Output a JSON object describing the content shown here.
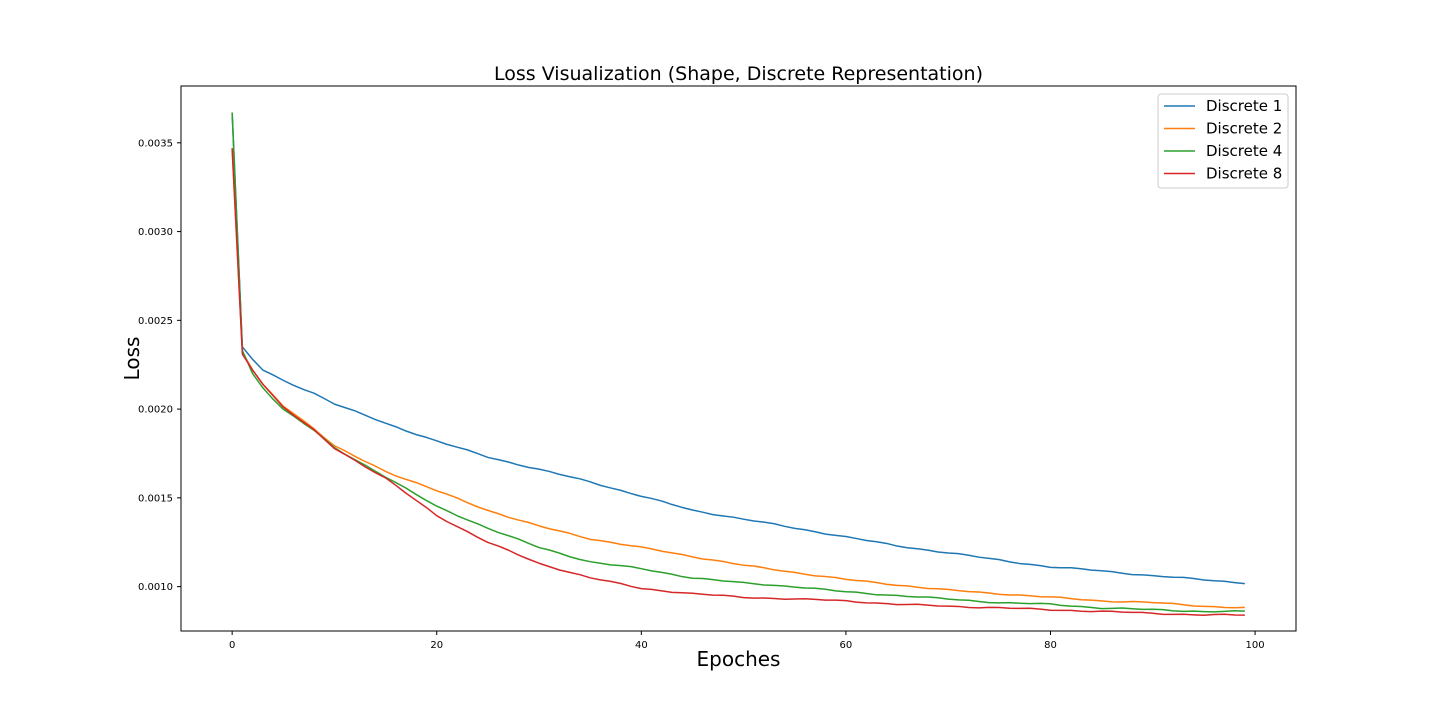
{
  "chart_data": {
    "type": "line",
    "title": "Loss Visualization (Shape, Discrete Representation)",
    "xlabel": "Epoches",
    "ylabel": "Loss",
    "xlim": [
      -5,
      104
    ],
    "ylim": [
      0.00075,
      0.00382
    ],
    "xticks": [
      0,
      20,
      40,
      60,
      80,
      100
    ],
    "yticks": [
      0.001,
      0.0015,
      0.002,
      0.0025,
      0.003,
      0.0035
    ],
    "ytick_labels": [
      "0.0010",
      "0.0015",
      "0.0020",
      "0.0025",
      "0.0030",
      "0.0035"
    ],
    "grid": false,
    "legend_position": "top-right",
    "x_start": 0,
    "x_end": 99,
    "series": [
      {
        "name": "Discrete 1",
        "color": "#1f77b4",
        "anchors": [
          [
            0,
            0.00367
          ],
          [
            1,
            0.00235
          ],
          [
            2,
            0.00228
          ],
          [
            3,
            0.00222
          ],
          [
            5,
            0.00216
          ],
          [
            8,
            0.00209
          ],
          [
            10,
            0.00203
          ],
          [
            15,
            0.00192
          ],
          [
            20,
            0.00182
          ],
          [
            25,
            0.00173
          ],
          [
            30,
            0.00166
          ],
          [
            35,
            0.00159
          ],
          [
            40,
            0.00151
          ],
          [
            45,
            0.00143
          ],
          [
            50,
            0.00138
          ],
          [
            55,
            0.00133
          ],
          [
            60,
            0.00128
          ],
          [
            65,
            0.00123
          ],
          [
            70,
            0.00119
          ],
          [
            75,
            0.00115
          ],
          [
            80,
            0.00111
          ],
          [
            85,
            0.00109
          ],
          [
            90,
            0.00106
          ],
          [
            95,
            0.00104
          ],
          [
            99,
            0.00102
          ]
        ]
      },
      {
        "name": "Discrete 2",
        "color": "#ff7f0e",
        "anchors": [
          [
            0,
            0.00346
          ],
          [
            1,
            0.00232
          ],
          [
            2,
            0.00222
          ],
          [
            3,
            0.00214
          ],
          [
            5,
            0.00202
          ],
          [
            8,
            0.00189
          ],
          [
            10,
            0.00179
          ],
          [
            15,
            0.00165
          ],
          [
            20,
            0.00154
          ],
          [
            25,
            0.00143
          ],
          [
            30,
            0.00134
          ],
          [
            35,
            0.00127
          ],
          [
            40,
            0.00122
          ],
          [
            45,
            0.00117
          ],
          [
            50,
            0.00112
          ],
          [
            55,
            0.00108
          ],
          [
            60,
            0.00104
          ],
          [
            65,
            0.00101
          ],
          [
            70,
            0.00098
          ],
          [
            75,
            0.00096
          ],
          [
            80,
            0.00094
          ],
          [
            85,
            0.00092
          ],
          [
            90,
            0.00091
          ],
          [
            95,
            0.00089
          ],
          [
            99,
            0.00088
          ]
        ]
      },
      {
        "name": "Discrete 4",
        "color": "#2ca02c",
        "anchors": [
          [
            0,
            0.00367
          ],
          [
            1,
            0.00233
          ],
          [
            2,
            0.0022
          ],
          [
            3,
            0.00212
          ],
          [
            5,
            0.002
          ],
          [
            8,
            0.00188
          ],
          [
            10,
            0.00178
          ],
          [
            15,
            0.00162
          ],
          [
            20,
            0.00145
          ],
          [
            25,
            0.00133
          ],
          [
            30,
            0.00122
          ],
          [
            35,
            0.00114
          ],
          [
            40,
            0.0011
          ],
          [
            45,
            0.00105
          ],
          [
            50,
            0.00102
          ],
          [
            55,
            0.001
          ],
          [
            60,
            0.00097
          ],
          [
            65,
            0.00095
          ],
          [
            70,
            0.00093
          ],
          [
            75,
            0.00091
          ],
          [
            80,
            0.0009
          ],
          [
            85,
            0.00088
          ],
          [
            90,
            0.00087
          ],
          [
            95,
            0.00086
          ],
          [
            99,
            0.00086
          ]
        ]
      },
      {
        "name": "Discrete 8",
        "color": "#d62728",
        "anchors": [
          [
            0,
            0.00347
          ],
          [
            1,
            0.00231
          ],
          [
            2,
            0.00222
          ],
          [
            3,
            0.00214
          ],
          [
            5,
            0.00201
          ],
          [
            8,
            0.00188
          ],
          [
            10,
            0.00178
          ],
          [
            15,
            0.00161
          ],
          [
            20,
            0.0014
          ],
          [
            25,
            0.00125
          ],
          [
            30,
            0.00113
          ],
          [
            35,
            0.00105
          ],
          [
            40,
            0.00099
          ],
          [
            45,
            0.00096
          ],
          [
            50,
            0.00094
          ],
          [
            55,
            0.00093
          ],
          [
            60,
            0.00092
          ],
          [
            65,
            0.0009
          ],
          [
            70,
            0.00089
          ],
          [
            75,
            0.00088
          ],
          [
            80,
            0.00087
          ],
          [
            85,
            0.00086
          ],
          [
            90,
            0.00085
          ],
          [
            95,
            0.00084
          ],
          [
            99,
            0.00084
          ]
        ]
      }
    ]
  }
}
